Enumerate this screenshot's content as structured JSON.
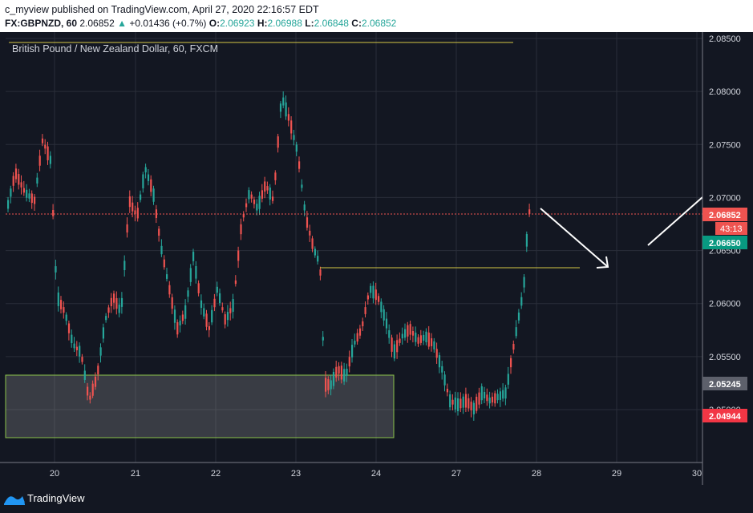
{
  "header": {
    "published_line": "c_myview published on TradingView.com, April 27, 2020 22:16:57 EDT",
    "symbol": "FX:GBPNZD, 60",
    "last": "2.06852",
    "change_arrow": "▲",
    "change": "+0.01436 (+0.7%)",
    "o_label": "O:",
    "o_value": "2.06923",
    "h_label": "H:",
    "h_value": "2.06988",
    "l_label": "L:",
    "l_value": "2.06848",
    "c_label": "C:",
    "c_value": "2.06852"
  },
  "chart": {
    "title": "British Pound / New Zealand Dollar, 60, FXCM",
    "price_labels": [
      "2.08500",
      "2.08000",
      "2.07500",
      "2.07000",
      "2.06500",
      "2.06000",
      "2.05500",
      "2.05000"
    ],
    "price_values": [
      2.085,
      2.08,
      2.075,
      2.07,
      2.065,
      2.06,
      2.055,
      2.05
    ],
    "date_labels": [
      "20",
      "21",
      "22",
      "23",
      "24",
      "27",
      "28",
      "29",
      "30"
    ],
    "ymin": 2.0465,
    "ymax": 2.0875,
    "marker_current": {
      "value": "2.06852",
      "countdown": "43:13",
      "color": "#ef5350"
    },
    "marker_green": {
      "value": "2.06650",
      "color": "#089981"
    },
    "marker_gray": {
      "value": "2.05245",
      "color": "#5d606b"
    },
    "marker_red": {
      "value": "2.04944",
      "color": "#f23645"
    },
    "colors": {
      "up": "#26a69a",
      "down": "#ef5350",
      "grid": "#2a2e39",
      "text": "#d1d4dc",
      "bg": "#131722"
    }
  },
  "footer": {
    "brand": "TradingView"
  }
}
